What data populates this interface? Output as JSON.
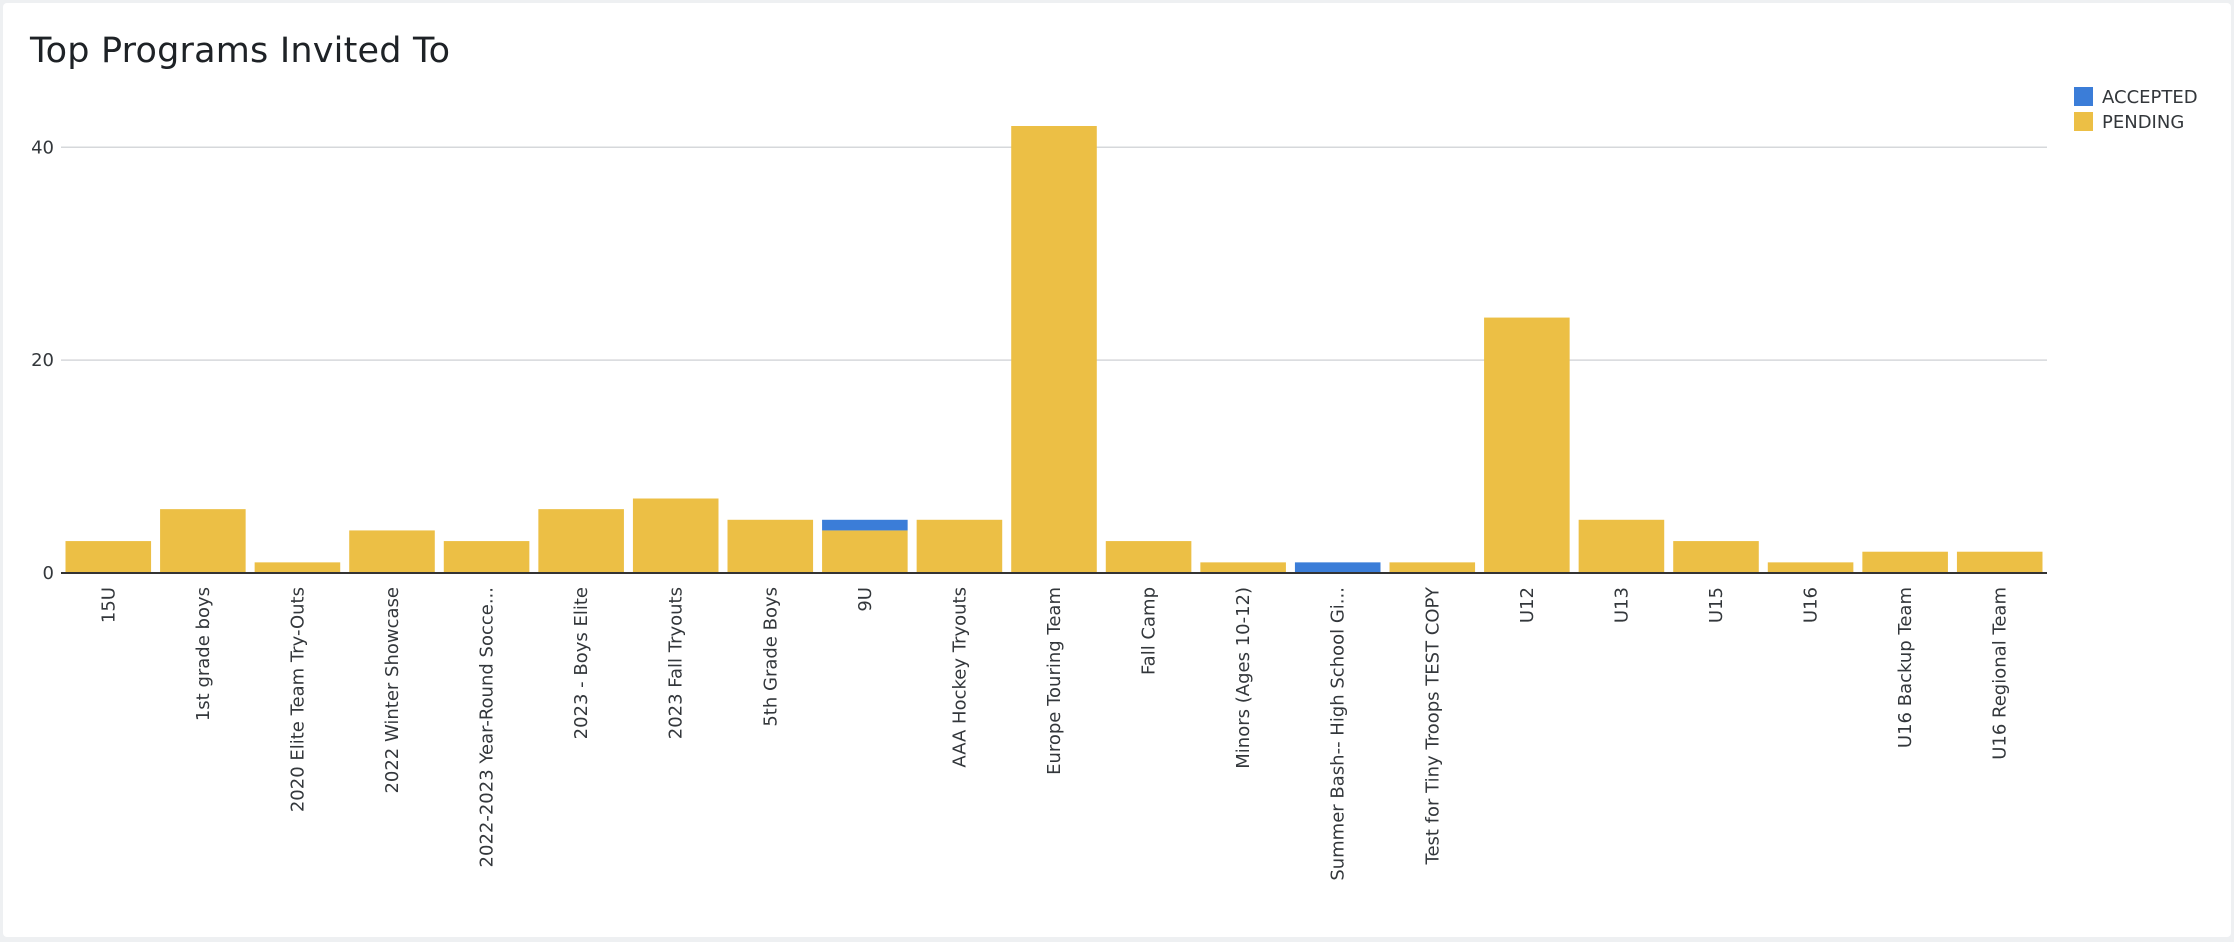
{
  "page": {
    "title": "Top Programs Invited To"
  },
  "colors": {
    "accepted": "#3b7dd8",
    "pending": "#ecbf45",
    "grid": "#d6d8db",
    "axis": "#333333"
  },
  "chart_data": {
    "type": "bar",
    "stacked": true,
    "title": "Top Programs Invited To",
    "xlabel": "",
    "ylabel": "",
    "ylim": [
      0,
      42
    ],
    "yticks": [
      0,
      20,
      40
    ],
    "grid": true,
    "legend_position": "top-right",
    "categories": [
      "15U",
      "1st grade boys",
      "2020 Elite Team Try-Outs",
      "2022 Winter Showcase",
      "2022-2023 Year-Round Socce...",
      "2023 - Boys Elite",
      "2023 Fall Tryouts",
      "5th Grade Boys",
      "9U",
      "AAA Hockey Tryouts",
      "Europe Touring Team",
      "Fall Camp",
      "Minors (Ages 10-12)",
      "Summer Bash-- High School Gi...",
      "Test for Tiny Troops TEST COPY",
      "U12",
      "U13",
      "U15",
      "U16",
      "U16 Backup Team",
      "U16 Regional Team"
    ],
    "series": [
      {
        "name": "ACCEPTED",
        "color": "#3b7dd8",
        "values": [
          0,
          0,
          0,
          0,
          0,
          0,
          0,
          0,
          1,
          0,
          0,
          0,
          0,
          1,
          0,
          0,
          0,
          0,
          0,
          0,
          0
        ]
      },
      {
        "name": "PENDING",
        "color": "#ecbf45",
        "values": [
          3,
          6,
          1,
          4,
          3,
          6,
          7,
          5,
          4,
          5,
          42,
          3,
          1,
          0,
          1,
          24,
          5,
          3,
          1,
          2,
          2
        ]
      }
    ]
  }
}
